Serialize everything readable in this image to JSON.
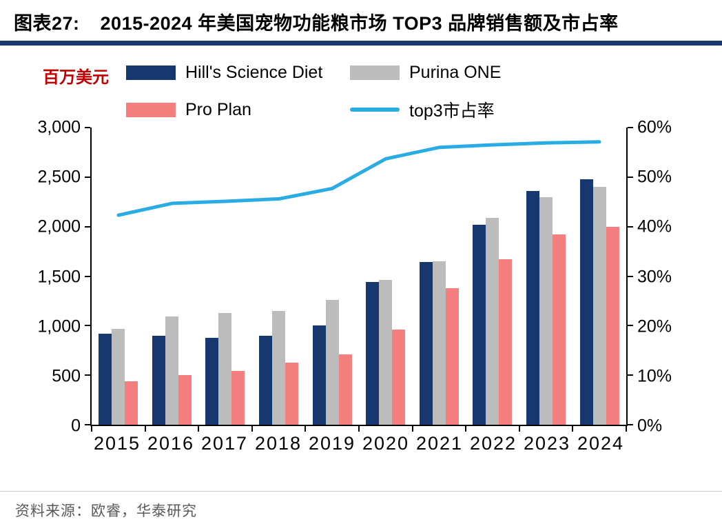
{
  "header": {
    "label": "图表27:",
    "title": "2015-2024 年美国宠物功能粮市场 TOP3 品牌销售额及市占率"
  },
  "colors": {
    "accent_rule": "#17386f",
    "unit_label": "#c00000",
    "axis": "#000000",
    "source_text": "#595959"
  },
  "chart": {
    "unit_label": "百万美元",
    "legend": [
      {
        "name": "Hill's Science Diet",
        "color": "#17386f",
        "marker": "bar"
      },
      {
        "name": "Purina ONE",
        "color": "#bcbcbc",
        "marker": "bar"
      },
      {
        "name": "Pro Plan",
        "color": "#f57e7e",
        "marker": "bar"
      },
      {
        "name": "top3市占率",
        "color": "#29ace3",
        "marker": "line"
      }
    ]
  },
  "chart_data": {
    "type": "bar+line",
    "title": "2015-2024 年美国宠物功能粮市场 TOP3 品牌销售额及市占率",
    "categories": [
      "2015",
      "2016",
      "2017",
      "2018",
      "2019",
      "2020",
      "2021",
      "2022",
      "2023",
      "2024"
    ],
    "series": [
      {
        "id": "hills-science-diet",
        "name": "Hill's Science Diet",
        "color": "#17386f",
        "axis": "left",
        "values": [
          920,
          900,
          875,
          900,
          1000,
          1440,
          1645,
          2020,
          2360,
          2480
        ]
      },
      {
        "id": "purina-one",
        "name": "Purina ONE",
        "color": "#bcbcbc",
        "axis": "left",
        "values": [
          965,
          1090,
          1130,
          1150,
          1260,
          1465,
          1650,
          2090,
          2300,
          2400
        ]
      },
      {
        "id": "pro-plan",
        "name": "Pro Plan",
        "color": "#f57e7e",
        "axis": "left",
        "values": [
          440,
          500,
          545,
          625,
          710,
          960,
          1380,
          1670,
          1920,
          2000
        ]
      }
    ],
    "line_series": {
      "id": "top3-share",
      "name": "top3市占率",
      "color": "#29ace3",
      "axis": "right",
      "values": [
        42.3,
        44.7,
        45.1,
        45.6,
        47.7,
        53.7,
        56.0,
        56.5,
        56.9,
        57.1
      ]
    },
    "left_axis": {
      "label": "百万美元",
      "min": 0,
      "max": 3000,
      "ticks": [
        "0",
        "500",
        "1,000",
        "1,500",
        "2,000",
        "2,500",
        "3,000"
      ]
    },
    "right_axis": {
      "min": 0,
      "max": 60,
      "unit": "%",
      "ticks": [
        "0%",
        "10%",
        "20%",
        "30%",
        "40%",
        "50%",
        "60%"
      ]
    },
    "grid": false,
    "legend_position": "top-left"
  },
  "footer": {
    "source": "资料来源：欧睿，华泰研究"
  }
}
